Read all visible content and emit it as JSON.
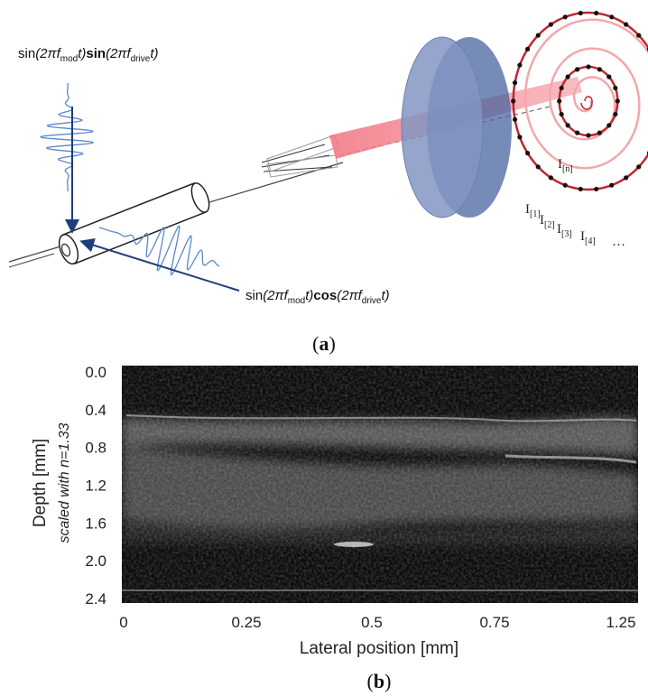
{
  "panel_a": {
    "formula_top": [
      "sin",
      "(2π",
      "f",
      "mod",
      "t)",
      "sin",
      "(2π",
      "f",
      "drive",
      "t)"
    ],
    "formula_bottom": [
      "sin",
      "(2π",
      "f",
      "mod",
      "t)",
      "cos",
      "(2π",
      "f",
      "drive",
      "t)"
    ],
    "intensity_labels": [
      [
        "I",
        "[n]"
      ],
      [
        "I",
        "[1]"
      ],
      [
        "I",
        "[2]"
      ],
      [
        "I",
        "[3]"
      ],
      [
        "I",
        "[4]"
      ]
    ],
    "ellipsis": "…",
    "caption": [
      "(",
      "a",
      ")"
    ]
  },
  "panel_b": {
    "y_ticks": [
      "0.0",
      "0.4",
      "0.8",
      "1.2",
      "1.6",
      "2.0",
      "2.4"
    ],
    "x_ticks": [
      "0",
      "0.25",
      "0.5",
      "0.75",
      "1.25"
    ],
    "y_label": "Depth [mm]",
    "y_sublabel": "scaled with n=1.33",
    "x_label": "Lateral position [mm]",
    "caption": [
      "(",
      "b",
      ")"
    ]
  }
}
